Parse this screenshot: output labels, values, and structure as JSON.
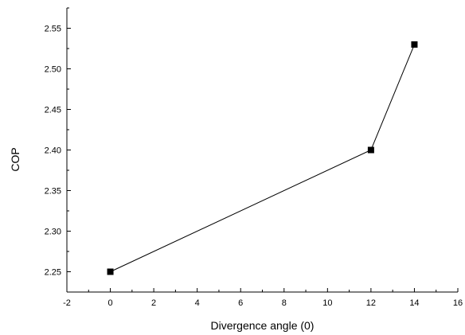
{
  "chart_data": {
    "type": "line",
    "title": "",
    "xlabel": "Divergence angle (0)",
    "ylabel": "COP",
    "xlim": [
      -2,
      16
    ],
    "ylim": [
      2.225,
      2.575
    ],
    "x_ticks": [
      -2,
      0,
      2,
      4,
      6,
      8,
      10,
      12,
      14,
      16
    ],
    "x_tick_labels": [
      "-2",
      "0",
      "2",
      "4",
      "6",
      "8",
      "10",
      "12",
      "14",
      "16"
    ],
    "y_ticks": [
      2.25,
      2.3,
      2.35,
      2.4,
      2.45,
      2.5,
      2.55
    ],
    "y_tick_labels": [
      "2.25",
      "2.30",
      "2.35",
      "2.40",
      "2.45",
      "2.50",
      "2.55"
    ],
    "grid": false,
    "legend": "none",
    "marker": "square",
    "line_color": "#000000",
    "series": [
      {
        "x": [
          0,
          12,
          14
        ],
        "y": [
          2.25,
          2.4,
          2.53
        ]
      }
    ]
  }
}
